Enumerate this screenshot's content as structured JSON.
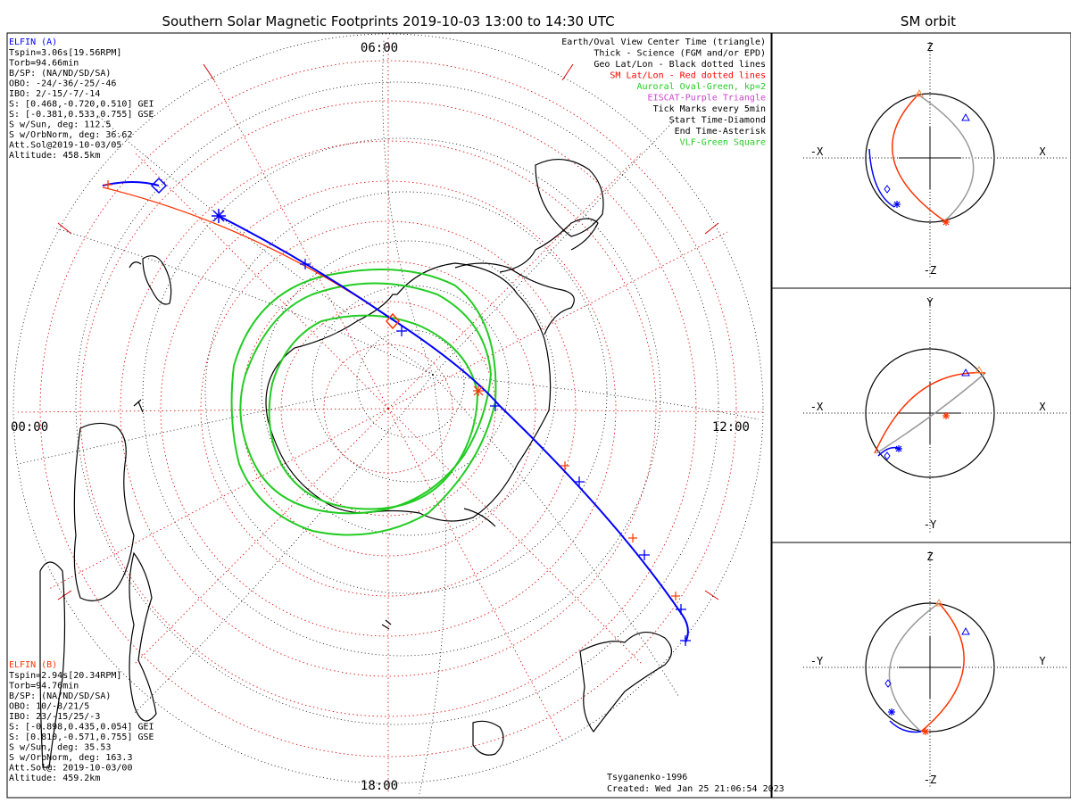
{
  "main_title": "Southern Solar Magnetic Footprints 2019-10-03 13:00 to 14:30 UTC",
  "orbit_title": "SM orbit",
  "colors": {
    "elfin_a": "#0000ff",
    "elfin_b": "#ff3300",
    "auroral_oval": "#22cc22",
    "sm_grid": "#dd0000",
    "eiscat": "#cc44cc",
    "orbit_shadow": "#999999"
  },
  "time_labels": {
    "top": "06:00",
    "left": "00:00",
    "right": "12:00",
    "bottom": "18:00"
  },
  "elfin_a": {
    "name": "ELFIN (A)",
    "lines": [
      "Tspin=3.06s[19.56RPM]",
      "Torb=94.66min",
      "B/SP: (NA/ND/SD/SA)",
      "OBO: -24/-36/-25/-46",
      "IBO: 2/-15/-7/-14",
      "S: [0.468,-0.720,0.510] GEI",
      "S: [-0.381,0.533,0.755] GSE",
      "S w/Sun, deg: 112.5",
      "S w/OrbNorm, deg: 36.62",
      "Att.Sol@2019-10-03/05",
      "Altitude: 458.5km"
    ]
  },
  "elfin_b": {
    "name": "ELFIN (B)",
    "lines": [
      "Tspin=2.94s[20.34RPM]",
      "Torb=94.76min",
      "B/SP: (NA/ND/SD/SA)",
      "OBO: 10/-8/21/5",
      "IBO: 23/-15/25/-3",
      "S: [-0.898,0.435,0.054] GEI",
      "S: [0.810,-0.571,0.755] GSE",
      "S w/Sun, deg: 35.53",
      "S w/OrbNorm, deg: 163.3",
      "Att.Sol@: 2019-10-03/00",
      "Altitude: 459.2km"
    ]
  },
  "legend": [
    {
      "text": "Earth/Oval View Center Time (triangle)",
      "color": "#000000"
    },
    {
      "text": "Thick - Science (FGM and/or EPD)",
      "color": "#000000"
    },
    {
      "text": "Geo Lat/Lon - Black dotted lines",
      "color": "#000000"
    },
    {
      "text": "SM Lat/Lon - Red dotted lines",
      "color": "#ff0000"
    },
    {
      "text": "Auroral Oval-Green, kp=2",
      "color": "#22cc22"
    },
    {
      "text": "EISCAT-Purple Triangle",
      "color": "#cc44cc"
    },
    {
      "text": "Tick Marks every 5min",
      "color": "#000000"
    },
    {
      "text": "Start Time-Diamond",
      "color": "#000000"
    },
    {
      "text": "End Time-Asterisk",
      "color": "#000000"
    },
    {
      "text": "VLF-Green Square",
      "color": "#22cc22"
    }
  ],
  "footer": {
    "model": "Tsyganenko-1996",
    "created": "Created: Wed Jan 25 21:06:54 2023"
  },
  "orbit_panels": [
    {
      "top": "Z",
      "bottom": "-Z",
      "left": "-X",
      "right": "X"
    },
    {
      "top": "Y",
      "bottom": "-Y",
      "left": "-X",
      "right": "X"
    },
    {
      "top": "Z",
      "bottom": "-Z",
      "left": "-Y",
      "right": "Y"
    }
  ]
}
